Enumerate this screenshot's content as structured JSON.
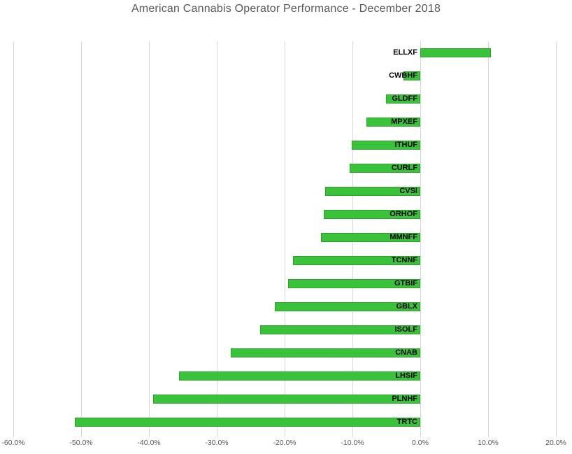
{
  "title": "American Cannabis Operator Performance - December 2018",
  "chart_data": {
    "type": "bar",
    "orientation": "horizontal",
    "title": "American Cannabis Operator Performance - December 2018",
    "categories": [
      "ELLXF",
      "CWBHF",
      "GLDFF",
      "MPXEF",
      "ITHUF",
      "CURLF",
      "CVSI",
      "ORHOF",
      "MMNFF",
      "TCNNF",
      "GTBIF",
      "GBLX",
      "ISOLF",
      "CNAB",
      "LHSIF",
      "PLNHF",
      "TRTC"
    ],
    "values": [
      10.4,
      -2.5,
      -5.1,
      -7.9,
      -10.1,
      -10.4,
      -14.0,
      -14.2,
      -14.6,
      -18.8,
      -19.5,
      -21.4,
      -23.6,
      -27.9,
      -35.6,
      -39.4,
      -50.9
    ],
    "value_unit": "%",
    "xlabel": "",
    "ylabel": "",
    "xlim": [
      -60,
      20
    ],
    "x_ticks": [
      -60,
      -50,
      -40,
      -30,
      -20,
      -10,
      0,
      10,
      20
    ],
    "x_tick_labels": [
      "-60.0%",
      "-50.0%",
      "-40.0%",
      "-30.0%",
      "-20.0%",
      "-10.0%",
      "0.0%",
      "10.0%",
      "20.0%"
    ],
    "grid": true,
    "legend": false,
    "colors": {
      "bar_fill": "#3BC23B",
      "bar_border": "#2EA42E",
      "gridline": "#D9D9D9",
      "title_text": "#595959",
      "axis_text": "#595959",
      "bar_label_text": "#000000",
      "background": "#FFFFFF"
    }
  }
}
